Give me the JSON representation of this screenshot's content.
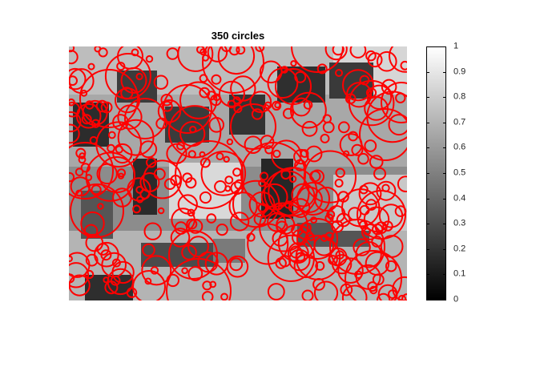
{
  "figure": {
    "title": "350 circles"
  },
  "colorbar": {
    "ticks": [
      "1",
      "0.9",
      "0.8",
      "0.7",
      "0.6",
      "0.5",
      "0.4",
      "0.3",
      "0.2",
      "0.1",
      "0"
    ],
    "range": [
      0,
      1
    ],
    "colormap": "gray"
  },
  "overlay": {
    "circle_color": "#ff0000",
    "circle_count": 350
  },
  "colors": {
    "circle": "#ff0000",
    "frame": "#000000",
    "background": "#ffffff"
  }
}
